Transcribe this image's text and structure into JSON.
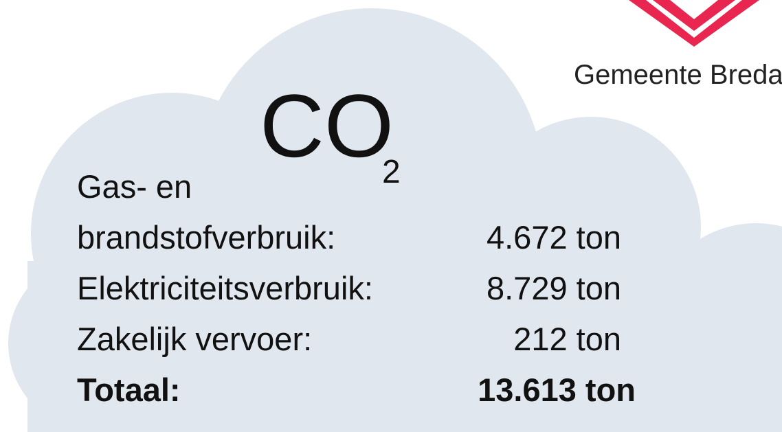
{
  "logo": {
    "text": "Gemeente Breda"
  },
  "title": {
    "text": "CO",
    "subscript": "2"
  },
  "rows": [
    {
      "label": [
        "Gas- en",
        "brandstofverbruik:"
      ],
      "value": "4.672 ton"
    },
    {
      "label": [
        "Elektriciteitsverbruik:"
      ],
      "value": "8.729 ton"
    },
    {
      "label": [
        "Zakelijk vervoer:"
      ],
      "value": "212 ton"
    },
    {
      "label": [
        "Totaal:"
      ],
      "value": "13.613 ton",
      "bold": true
    }
  ]
}
